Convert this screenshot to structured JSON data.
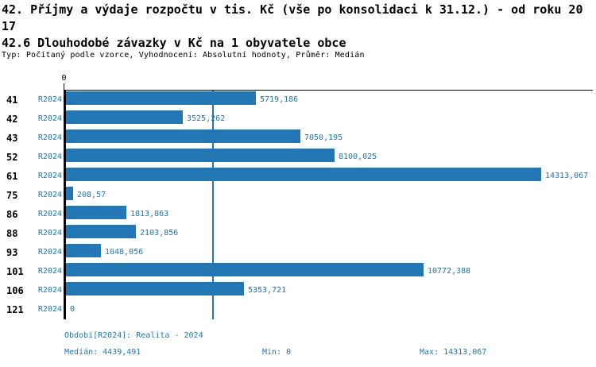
{
  "page": {
    "title": "42. Příjmy a výdaje rozpočtu v tis. Kč (vše po konsolidaci k 31.12.) - od roku 2017",
    "subtitle": "42.6 Dlouhodobé závazky v Kč na 1 obyvatele obce",
    "meta": "Typ: Počítaný podle vzorce, Vyhodnocení: Absolutní hodnoty, Průměr: Medián"
  },
  "colors": {
    "bar": "#2277b4",
    "axis": "#000000",
    "text": "#000000"
  },
  "chart_data": {
    "type": "bar",
    "orientation": "horizontal",
    "title": "42.6 Dlouhodobé závazky v Kč na 1 obyvatele obce",
    "series_label": "R2024",
    "categories": [
      "41",
      "42",
      "43",
      "52",
      "61",
      "75",
      "86",
      "88",
      "93",
      "101",
      "106",
      "121"
    ],
    "values": [
      5719.186,
      3525.262,
      7050.195,
      8100.025,
      14313.067,
      208.57,
      1813.863,
      2103.856,
      1048.056,
      10772.388,
      5353.721,
      0
    ],
    "value_labels": [
      "5719,186",
      "3525,262",
      "7050,195",
      "8100,025",
      "14313,067",
      "208,57",
      "1813,863",
      "2103,856",
      "1048,056",
      "10772,388",
      "5353,721",
      "0"
    ],
    "axis_tick_zero": "0",
    "xlim": [
      0,
      14313.067
    ],
    "median_value": 4439.491,
    "grid": false,
    "legend_position": "none"
  },
  "footer": {
    "period": "Období[R2024]: Realita - 2024",
    "median": "Medián: 4439,491",
    "min": "Min: 0",
    "max": "Max: 14313,067"
  }
}
